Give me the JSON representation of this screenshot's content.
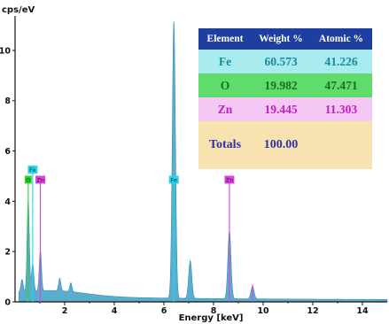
{
  "chart_data": {
    "type": "area",
    "ylabel": "cps/eV",
    "xlabel": "Energy [keV]",
    "xlim": [
      0,
      15
    ],
    "ylim": [
      0,
      11.3
    ],
    "xticks": [
      "2",
      "4",
      "6",
      "8",
      "10",
      "12",
      "14"
    ],
    "yticks": [
      "0",
      "2",
      "4",
      "6",
      "8",
      "10"
    ],
    "grid": false,
    "spectrum_color": "#4aa3c8",
    "peaks": [
      {
        "energy": 0.28,
        "height": 0.5
      },
      {
        "energy": 0.53,
        "height": 3.6
      },
      {
        "energy": 0.71,
        "height": 1.1
      },
      {
        "energy": 1.02,
        "height": 1.6
      },
      {
        "energy": 1.8,
        "height": 0.5
      },
      {
        "energy": 2.25,
        "height": 0.35
      },
      {
        "energy": 6.4,
        "height": 11.0
      },
      {
        "energy": 7.06,
        "height": 1.5
      },
      {
        "energy": 8.64,
        "height": 2.7
      },
      {
        "energy": 9.57,
        "height": 0.5
      }
    ],
    "element_markers": [
      {
        "label": "O",
        "energy": 0.53,
        "top": 4.7,
        "color": "#2dd82d"
      },
      {
        "label": "Fe",
        "energy": 0.71,
        "top": 5.1,
        "color": "#22d8e8"
      },
      {
        "label": "Zn",
        "energy": 1.02,
        "top": 4.7,
        "color": "#e040e0"
      },
      {
        "label": "Fe",
        "energy": 6.4,
        "top": 4.7,
        "color": "#22d8e8"
      },
      {
        "label": "Zn",
        "energy": 8.64,
        "top": 4.7,
        "color": "#e040e0"
      },
      {
        "label": "",
        "energy": 9.57,
        "top": 0.7,
        "color": "#e040e0"
      }
    ],
    "table": {
      "headers": [
        "Element",
        "Weight %",
        "Atomic %"
      ],
      "rows": [
        {
          "element": "Fe",
          "weight": "60.573",
          "atomic": "41.226",
          "bg": "#a8ecf0",
          "color": "#1a8a9a"
        },
        {
          "element": "O",
          "weight": "19.982",
          "atomic": "47.471",
          "bg": "#5fdc6a",
          "color": "#1b6e22"
        },
        {
          "element": "Zn",
          "weight": "19.445",
          "atomic": "11.303",
          "bg": "#f4c8f4",
          "color": "#c020c0"
        }
      ],
      "totals_label": "Totals",
      "totals_weight": "100.00",
      "totals_atomic": "",
      "totals_bg": "#f8e2b0"
    }
  }
}
